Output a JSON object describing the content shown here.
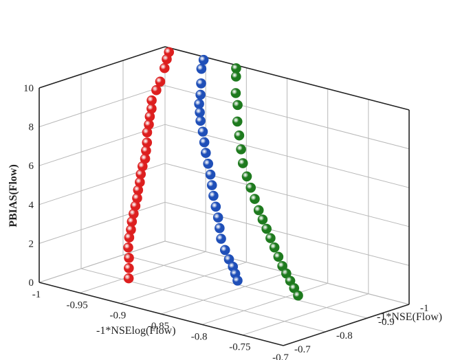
{
  "chart_data": {
    "type": "scatter",
    "projection": "3d",
    "xlabel": "-1*NSElog(Flow)",
    "ylabel": "-1*NSE(Flow)",
    "zlabel": "PBIAS(Flow)",
    "x_ticks": [
      "-1",
      "-0.95",
      "-0.9",
      "-0.85",
      "-0.8",
      "-0.75",
      "-0.7"
    ],
    "y_ticks": [
      "-0.7",
      "-0.8",
      "-0.9",
      "-1"
    ],
    "z_ticks": [
      "0",
      "2",
      "4",
      "6",
      "8",
      "10"
    ],
    "xlim": [
      -1,
      -0.7
    ],
    "ylim": [
      -0.7,
      -1
    ],
    "zlim": [
      0,
      10
    ],
    "grid": true,
    "series": [
      {
        "color": "#dd1f1f",
        "points": [
          [
            -0.99,
            -0.99,
            9.9
          ],
          [
            -0.985,
            -0.975,
            9.7
          ],
          [
            -0.98,
            -0.96,
            9.4
          ],
          [
            -0.975,
            -0.94,
            8.9
          ],
          [
            -0.972,
            -0.925,
            8.6
          ],
          [
            -0.97,
            -0.91,
            8.2
          ],
          [
            -0.965,
            -0.9,
            7.9
          ],
          [
            -0.962,
            -0.89,
            7.6
          ],
          [
            -0.958,
            -0.88,
            7.3
          ],
          [
            -0.955,
            -0.87,
            7.0
          ],
          [
            -0.95,
            -0.86,
            6.6
          ],
          [
            -0.946,
            -0.85,
            6.3
          ],
          [
            -0.942,
            -0.84,
            6.0
          ],
          [
            -0.94,
            -0.83,
            5.7
          ],
          [
            -0.937,
            -0.82,
            5.4
          ],
          [
            -0.933,
            -0.81,
            5.1
          ],
          [
            -0.93,
            -0.8,
            4.8
          ],
          [
            -0.926,
            -0.79,
            4.5
          ],
          [
            -0.923,
            -0.78,
            4.2
          ],
          [
            -0.92,
            -0.77,
            3.9
          ],
          [
            -0.917,
            -0.76,
            3.6
          ],
          [
            -0.913,
            -0.75,
            3.3
          ],
          [
            -0.91,
            -0.74,
            3.0
          ],
          [
            -0.906,
            -0.73,
            2.6
          ],
          [
            -0.9,
            -0.72,
            2.2
          ],
          [
            -0.895,
            -0.71,
            1.8
          ],
          [
            -0.89,
            -0.7,
            1.4
          ]
        ]
      },
      {
        "color": "#1f4fb8",
        "points": [
          [
            -0.95,
            -0.995,
            9.9
          ],
          [
            -0.945,
            -0.98,
            9.6
          ],
          [
            -0.935,
            -0.96,
            9.1
          ],
          [
            -0.928,
            -0.945,
            8.7
          ],
          [
            -0.922,
            -0.93,
            8.4
          ],
          [
            -0.916,
            -0.92,
            8.1
          ],
          [
            -0.91,
            -0.91,
            7.8
          ],
          [
            -0.902,
            -0.9,
            7.4
          ],
          [
            -0.895,
            -0.89,
            7.0
          ],
          [
            -0.888,
            -0.88,
            6.6
          ],
          [
            -0.88,
            -0.87,
            6.2
          ],
          [
            -0.872,
            -0.86,
            5.8
          ],
          [
            -0.865,
            -0.85,
            5.4
          ],
          [
            -0.858,
            -0.84,
            5.0
          ],
          [
            -0.85,
            -0.83,
            4.6
          ],
          [
            -0.842,
            -0.82,
            4.2
          ],
          [
            -0.835,
            -0.81,
            3.8
          ],
          [
            -0.828,
            -0.8,
            3.4
          ],
          [
            -0.818,
            -0.79,
            3.0
          ],
          [
            -0.808,
            -0.78,
            2.7
          ],
          [
            -0.798,
            -0.77,
            2.5
          ],
          [
            -0.79,
            -0.76,
            2.3
          ],
          [
            -0.782,
            -0.75,
            2.1
          ]
        ]
      },
      {
        "color": "#1e7a1e",
        "points": [
          [
            -0.91,
            -0.995,
            9.9
          ],
          [
            -0.905,
            -0.985,
            9.6
          ],
          [
            -0.895,
            -0.965,
            9.0
          ],
          [
            -0.885,
            -0.95,
            8.6
          ],
          [
            -0.875,
            -0.93,
            8.0
          ],
          [
            -0.865,
            -0.915,
            7.5
          ],
          [
            -0.855,
            -0.9,
            7.0
          ],
          [
            -0.845,
            -0.885,
            6.5
          ],
          [
            -0.835,
            -0.875,
            6.0
          ],
          [
            -0.825,
            -0.865,
            5.6
          ],
          [
            -0.815,
            -0.855,
            5.2
          ],
          [
            -0.805,
            -0.845,
            4.8
          ],
          [
            -0.795,
            -0.835,
            4.5
          ],
          [
            -0.785,
            -0.825,
            4.2
          ],
          [
            -0.775,
            -0.815,
            3.9
          ],
          [
            -0.765,
            -0.805,
            3.6
          ],
          [
            -0.755,
            -0.795,
            3.3
          ],
          [
            -0.745,
            -0.785,
            3.0
          ],
          [
            -0.735,
            -0.775,
            2.8
          ],
          [
            -0.725,
            -0.765,
            2.6
          ],
          [
            -0.715,
            -0.755,
            2.4
          ],
          [
            -0.705,
            -0.745,
            2.2
          ]
        ]
      }
    ]
  }
}
